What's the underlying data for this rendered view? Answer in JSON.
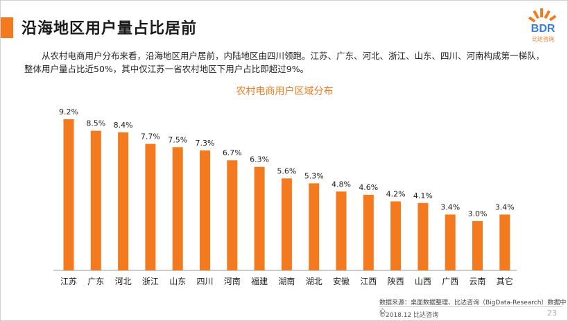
{
  "header": {
    "title": "沿海地区用户量占比居前"
  },
  "logo": {
    "text": "BDR",
    "sub": "比达咨询"
  },
  "paragraph": "从农村电商用户分布来看，沿海地区用户居前，内陆地区由四川领跑。江苏、广东、河北、浙江、山东、四川、河南构成第一梯队，整体用户量占比近50%，其中仅江苏一省农村地区下用户占比即超过9%。",
  "chart_data": {
    "type": "bar",
    "title": "农村电商用户区域分布",
    "categories": [
      "江苏",
      "广东",
      "河北",
      "浙江",
      "山东",
      "四川",
      "河南",
      "福建",
      "湖南",
      "湖北",
      "安徽",
      "江西",
      "陕西",
      "山西",
      "广西",
      "云南",
      "其它"
    ],
    "values": [
      9.2,
      8.5,
      8.4,
      7.7,
      7.5,
      7.3,
      6.7,
      6.3,
      5.6,
      5.3,
      4.8,
      4.6,
      4.2,
      4.1,
      3.4,
      3.0,
      3.4
    ],
    "value_labels": [
      "9.2%",
      "8.5%",
      "8.4%",
      "7.7%",
      "7.5%",
      "7.3%",
      "6.7%",
      "6.3%",
      "5.6%",
      "5.3%",
      "4.8%",
      "4.6%",
      "4.2%",
      "4.1%",
      "3.4%",
      "3.0%",
      "3.4%"
    ],
    "ylim": [
      0,
      10
    ],
    "grid": false,
    "bar_color": "#f47a1f",
    "axis_color": "#999999"
  },
  "footer": {
    "source": "数据来源：桌面数据整理、比达咨询（BigData-Research）数据中心",
    "copyright": "©2018.12 比达咨询",
    "page": "23"
  },
  "colors": {
    "accent": "#f47a1f",
    "logo_blue": "#3a7fd5"
  }
}
